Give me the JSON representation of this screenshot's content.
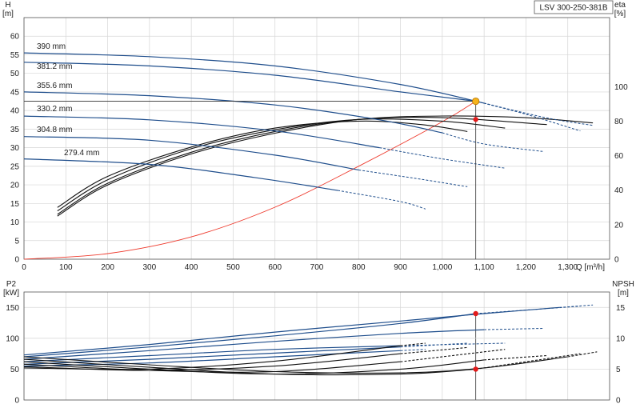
{
  "model": "LSV 300-250-381B",
  "chart_data": [
    {
      "type": "line",
      "name": "head",
      "y_label_left": "H\n[m]",
      "y_label_right": "eta\n[%]",
      "x_label": "Q [m³/h]",
      "xlim": [
        0,
        1400
      ],
      "ylim": [
        0,
        65
      ],
      "y2lim": [
        0,
        140
      ],
      "x_ticks": [
        "0",
        "100",
        "200",
        "300",
        "400",
        "500",
        "600",
        "700",
        "800",
        "900",
        "1,000",
        "1,100",
        "1,200",
        "1,300"
      ],
      "y_ticks": [
        "0",
        "5",
        "10",
        "15",
        "20",
        "25",
        "30",
        "35",
        "40",
        "45",
        "50",
        "55",
        "60"
      ],
      "y2_ticks": [
        "0",
        "20",
        "40",
        "60",
        "80",
        "100"
      ],
      "grid": true,
      "impeller_curves": [
        {
          "label": "390 mm",
          "q": [
            0,
            300,
            600,
            900,
            1100,
            1250,
            1360
          ],
          "h": [
            55.5,
            54.5,
            52,
            47,
            42,
            38,
            36
          ]
        },
        {
          "label": "381.2 mm",
          "q": [
            0,
            300,
            600,
            900,
            1080,
            1200,
            1330
          ],
          "h": [
            53,
            52,
            49.5,
            45,
            42.5,
            39,
            34.5
          ]
        },
        {
          "label": "355.6 mm",
          "q": [
            0,
            300,
            600,
            850,
            1000,
            1100,
            1240
          ],
          "h": [
            45,
            44,
            41.5,
            37.5,
            34,
            31,
            29
          ]
        },
        {
          "label": "330.2 mm",
          "q": [
            0,
            300,
            600,
            850,
            1000,
            1150
          ],
          "h": [
            38.5,
            37.5,
            34.5,
            30,
            27,
            24.5
          ]
        },
        {
          "label": "304.8 mm",
          "q": [
            0,
            300,
            600,
            800,
            950,
            1060
          ],
          "h": [
            33,
            32,
            28,
            24,
            21.5,
            19.5
          ]
        },
        {
          "label": "279.4 mm",
          "q": [
            0,
            300,
            550,
            750,
            900,
            960
          ],
          "h": [
            27,
            25.5,
            22,
            18.5,
            15.5,
            13.5
          ]
        }
      ],
      "efficiency_curves": [
        {
          "q": [
            80,
            200,
            400,
            600,
            800,
            950,
            1060
          ],
          "eta": [
            30,
            48,
            65,
            76,
            80,
            78,
            74
          ]
        },
        {
          "q": [
            80,
            200,
            400,
            600,
            800,
            1000,
            1150
          ],
          "eta": [
            28,
            46,
            64,
            75,
            81,
            80,
            76
          ]
        },
        {
          "q": [
            80,
            200,
            400,
            600,
            800,
            1000,
            1250
          ],
          "eta": [
            26,
            44,
            62,
            74,
            81,
            82,
            78
          ]
        },
        {
          "q": [
            80,
            200,
            400,
            600,
            800,
            1000,
            1200,
            1360
          ],
          "eta": [
            25,
            43,
            61,
            73,
            81,
            83,
            82,
            79
          ]
        }
      ],
      "system_curve": {
        "q": [
          0,
          200,
          400,
          600,
          800,
          1000,
          1080
        ],
        "h": [
          0,
          1.5,
          6,
          14,
          25,
          37,
          42.5
        ]
      },
      "duty_point": {
        "q": 1080,
        "h": 42.5,
        "eta": 81
      }
    },
    {
      "type": "line",
      "name": "power_npsh",
      "y_label_left": "P2\n[kW]",
      "y_label_right": "NPSH\n[m]",
      "xlim": [
        0,
        1400
      ],
      "ylim": [
        0,
        175
      ],
      "y2lim": [
        0,
        17.5
      ],
      "y_ticks": [
        "0",
        "50",
        "100",
        "150"
      ],
      "y2_ticks": [
        "0",
        "5",
        "10",
        "15"
      ],
      "grid": true,
      "power_curves": [
        {
          "q": [
            0,
            300,
            600,
            900,
            1100,
            1280,
            1360
          ],
          "p": [
            73,
            90,
            110,
            128,
            140,
            150,
            154
          ]
        },
        {
          "q": [
            0,
            300,
            600,
            900,
            1080,
            1330
          ],
          "p": [
            70,
            86,
            104,
            124,
            140,
            152
          ]
        },
        {
          "q": [
            0,
            300,
            600,
            900,
            1100,
            1240
          ],
          "p": [
            66,
            80,
            95,
            108,
            114,
            116
          ]
        },
        {
          "q": [
            0,
            300,
            600,
            900,
            1150
          ],
          "p": [
            62,
            72,
            82,
            88,
            92
          ]
        },
        {
          "q": [
            0,
            300,
            600,
            900,
            1060
          ],
          "p": [
            58,
            66,
            76,
            86,
            92
          ]
        },
        {
          "q": [
            0,
            300,
            600,
            900,
            960
          ],
          "p": [
            55,
            60,
            70,
            80,
            82
          ]
        }
      ],
      "npsh_curves": [
        {
          "q": [
            0,
            300,
            600,
            900,
            1100,
            1300,
            1370
          ],
          "n": [
            7,
            5.7,
            4.6,
            4.4,
            5.2,
            7.0,
            7.8
          ]
        },
        {
          "q": [
            0,
            300,
            600,
            900,
            1080,
            1330
          ],
          "n": [
            6.6,
            5.3,
            4.2,
            4.2,
            5.0,
            7.5
          ]
        },
        {
          "q": [
            0,
            300,
            600,
            900,
            1100,
            1250
          ],
          "n": [
            6.2,
            5.0,
            4.2,
            5.0,
            6.5,
            7.2
          ]
        },
        {
          "q": [
            0,
            300,
            600,
            900,
            1150
          ],
          "n": [
            5.8,
            4.8,
            4.6,
            6.2,
            8.2
          ]
        },
        {
          "q": [
            0,
            300,
            600,
            900,
            1060
          ],
          "n": [
            5.4,
            4.8,
            5.5,
            7.5,
            8.5
          ]
        },
        {
          "q": [
            0,
            300,
            600,
            900,
            960
          ],
          "n": [
            5.2,
            5.0,
            6.3,
            8.8,
            9.2
          ]
        }
      ],
      "duty_points": [
        {
          "q": 1080,
          "p": 140
        },
        {
          "q": 1080,
          "n": 5.0
        }
      ]
    }
  ]
}
